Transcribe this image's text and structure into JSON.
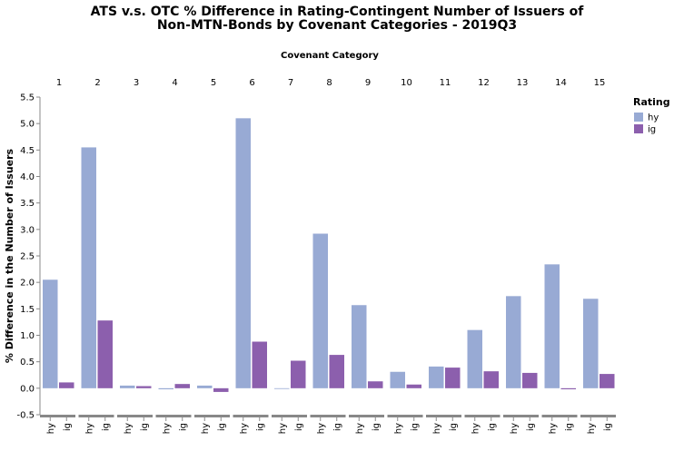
{
  "chart_data": {
    "type": "bar",
    "title_lines": [
      "ATS v.s. OTC % Difference in Rating-Contingent Number of Issuers of",
      "Non-MTN-Bonds by Covenant Categories - 2019Q3"
    ],
    "column_title": "Covenant Category",
    "ylabel": "% Difference in the Number of Issuers",
    "ylim": [
      -0.5,
      5.5
    ],
    "yticks": [
      "-0.5",
      "0.0",
      "0.5",
      "1.0",
      "1.5",
      "2.0",
      "2.5",
      "3.0",
      "3.5",
      "4.0",
      "4.5",
      "5.0",
      "5.5"
    ],
    "grid": false,
    "legend_title": "Rating",
    "legend_position": "top-right",
    "categories": [
      "1",
      "2",
      "3",
      "4",
      "5",
      "6",
      "7",
      "8",
      "9",
      "10",
      "11",
      "12",
      "13",
      "14",
      "15"
    ],
    "subcategories": [
      "hy",
      "ig"
    ],
    "series": [
      {
        "name": "hy",
        "color": "#98aad4",
        "values": [
          2.05,
          4.55,
          0.05,
          -0.02,
          0.05,
          5.1,
          0.0,
          2.92,
          1.57,
          0.31,
          0.41,
          1.1,
          1.74,
          2.34,
          1.69
        ]
      },
      {
        "name": "ig",
        "color": "#8c5fad",
        "values": [
          0.11,
          1.28,
          0.04,
          0.08,
          -0.07,
          0.88,
          0.52,
          0.63,
          0.13,
          0.07,
          0.39,
          0.32,
          0.29,
          -0.02,
          0.27
        ]
      }
    ]
  }
}
